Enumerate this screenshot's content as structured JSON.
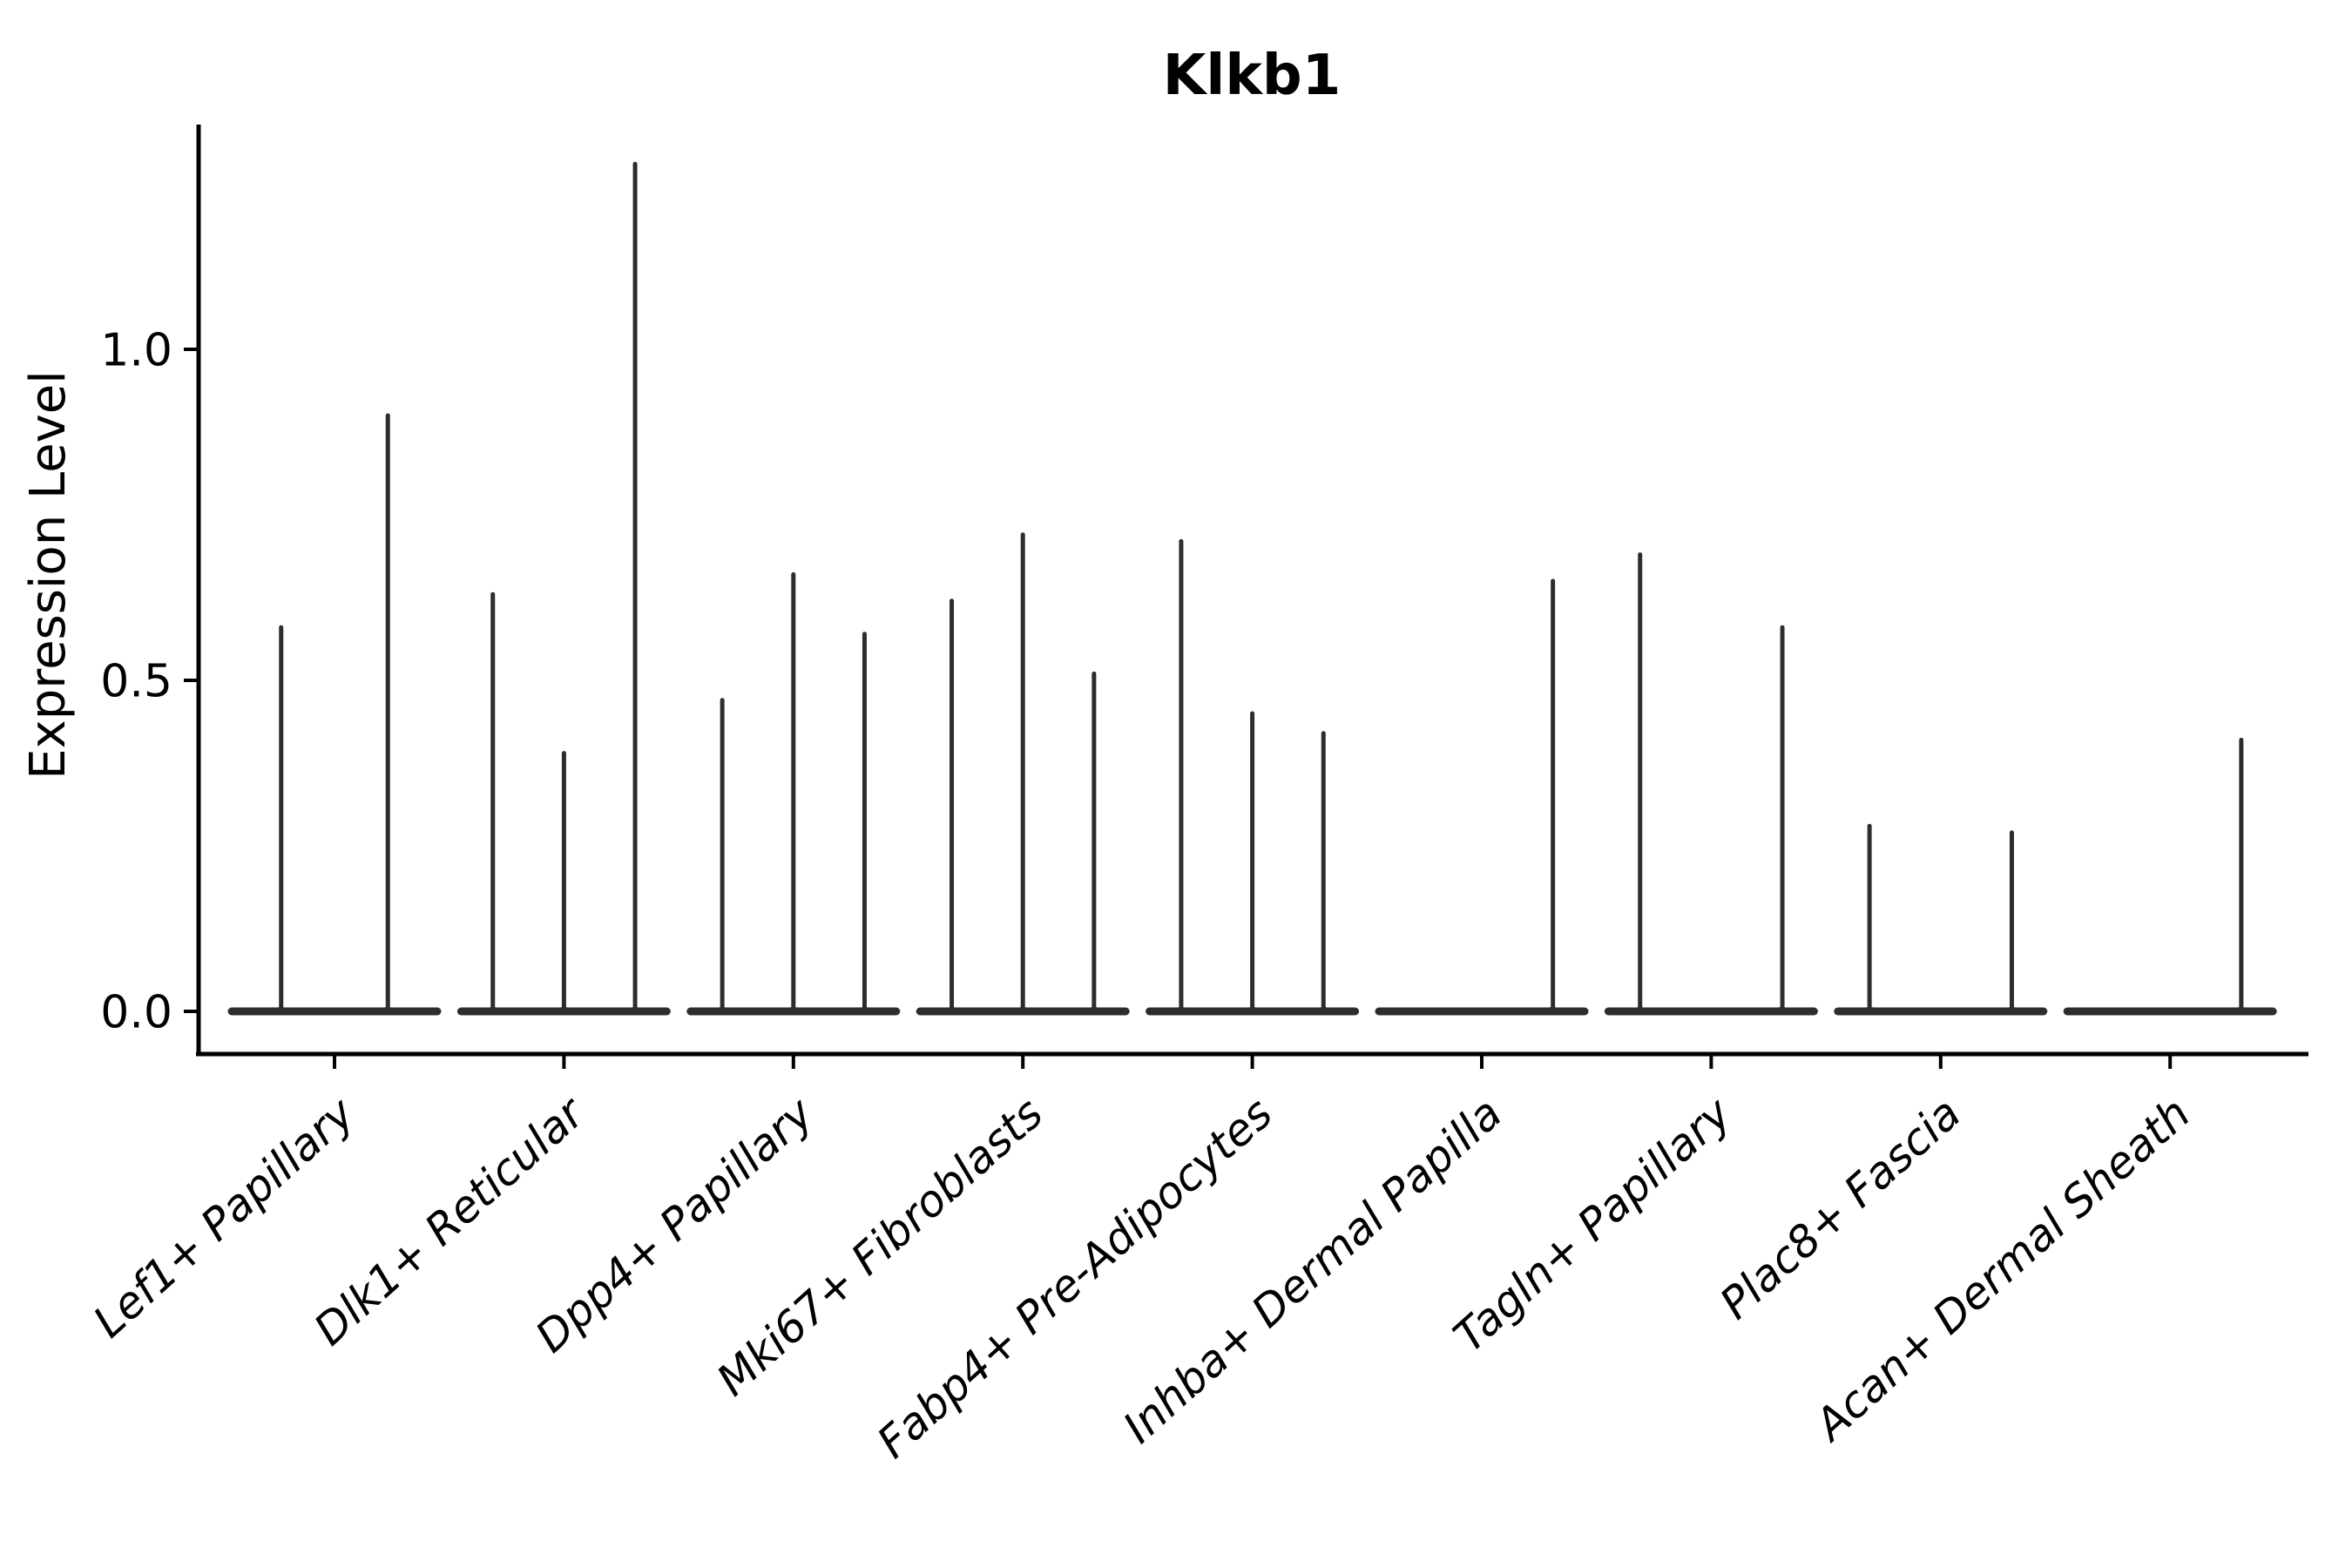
{
  "chart_data": {
    "type": "violin",
    "title": "Klkb1",
    "xlabel": "",
    "ylabel": "Expression Level",
    "ylim": [
      0,
      1.34
    ],
    "grid": false,
    "legend": null,
    "yticks": [
      {
        "label": "0.0",
        "value": 0.0
      },
      {
        "label": "0.5",
        "value": 0.5
      },
      {
        "label": "1.0",
        "value": 1.0
      }
    ],
    "categories": [
      "Lef1+ Papillary",
      "Dlk1+ Reticular",
      "Dpp4+ Papillary",
      "Mki67+ Fibroblasts",
      "Fabp4+ Pre-Adipocytes",
      "Inhba+ Dermal Papilla",
      "Tagln+ Papillary",
      "Plac8+ Fascia",
      "Acan+ Dermal Sheath"
    ],
    "violin_description": "Each category shows dodged sub-violins that are flat at expression 0 with a thin vertical tail up to the max expression value; slot_max lists the max expression of each sub-violin (0 = fully flat, no tail).",
    "series": [
      {
        "category": "Lef1+ Papillary",
        "slot_max": [
          0.58,
          0.9
        ]
      },
      {
        "category": "Dlk1+ Reticular",
        "slot_max": [
          0.63,
          0.39,
          1.28
        ]
      },
      {
        "category": "Dpp4+ Papillary",
        "slot_max": [
          0.47,
          0.66,
          0.57
        ]
      },
      {
        "category": "Mki67+ Fibroblasts",
        "slot_max": [
          0.62,
          0.72,
          0.51
        ]
      },
      {
        "category": "Fabp4+ Pre-Adipocytes",
        "slot_max": [
          0.71,
          0.45,
          0.42
        ]
      },
      {
        "category": "Inhba+ Dermal Papilla",
        "slot_max": [
          0.0,
          0.0,
          0.65
        ]
      },
      {
        "category": "Tagln+ Papillary",
        "slot_max": [
          0.69,
          0.0,
          0.58
        ]
      },
      {
        "category": "Plac8+ Fascia",
        "slot_max": [
          0.28,
          0.0,
          0.27
        ]
      },
      {
        "category": "Acan+ Dermal Sheath",
        "slot_max": [
          0.0,
          0.0,
          0.41
        ]
      }
    ],
    "colors": {
      "violin": "#2d2d2d",
      "axis": "#000000",
      "text": "#000000",
      "background": "#ffffff"
    }
  }
}
